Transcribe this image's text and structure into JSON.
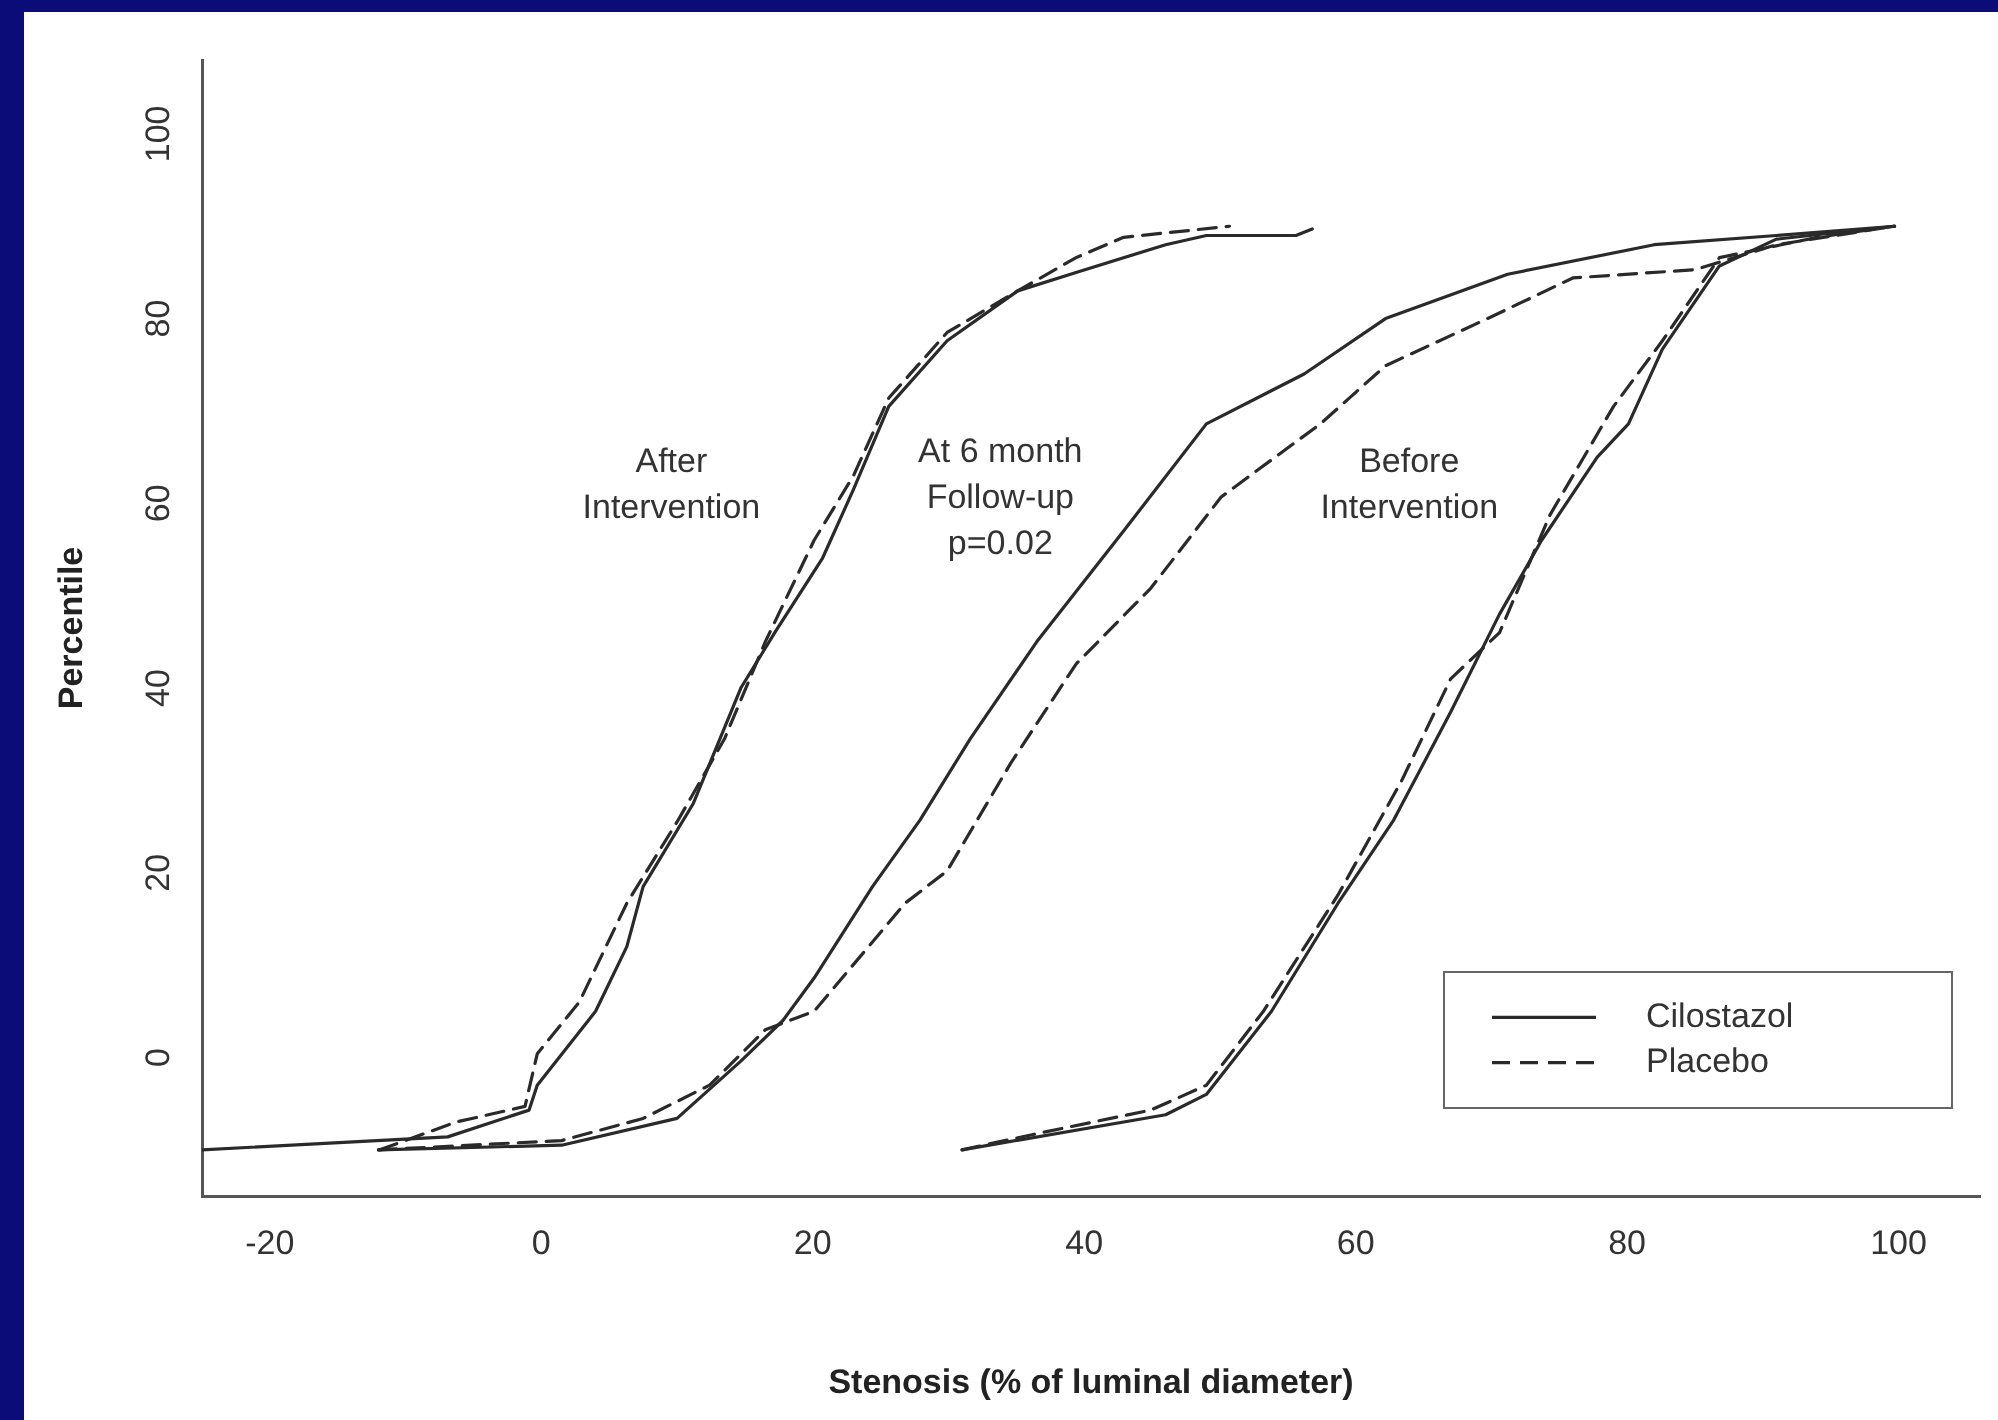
{
  "chart_data": {
    "type": "line",
    "xlabel": "Stenosis (% of luminal diameter)",
    "ylabel": "Percentile",
    "xlim": [
      -25,
      106
    ],
    "ylim": [
      -15,
      108
    ],
    "xticks": [
      -20,
      0,
      20,
      40,
      60,
      80,
      100
    ],
    "yticks": [
      0,
      20,
      40,
      60,
      80,
      100
    ],
    "legend": "bottom right",
    "series": [
      {
        "name": "Cilostazol",
        "color": "#2a2a2a",
        "line_style": "solid",
        "x": [
          -25,
          -6.9,
          -0.9,
          -0.3,
          4,
          6.3,
          7.5,
          11.2,
          14.7,
          17.2,
          20.7,
          23,
          25.6,
          29.9,
          35.1,
          39.4,
          46,
          49,
          55.6,
          56.8
        ],
        "values": [
          -10,
          -8.6,
          -5.7,
          -3,
          5,
          12,
          18.5,
          27.5,
          40,
          46,
          54,
          61.5,
          70.5,
          77.6,
          83,
          85,
          88,
          89,
          89,
          89.7
        ]
      },
      {
        "name": "Placebo",
        "color": "#2a2a2a",
        "line_style": "dashed",
        "x": [
          -11.9,
          -6.3,
          -1.2,
          -0.3,
          2.8,
          6.3,
          10,
          13.5,
          16.5,
          20.1,
          23,
          25.6,
          29.9,
          35.1,
          39.4,
          42.9,
          50.7
        ],
        "values": [
          -10,
          -7,
          -5.3,
          0.4,
          6,
          16.7,
          25.5,
          34.5,
          45,
          56,
          63,
          71.4,
          78.5,
          83,
          86.6,
          88.8,
          90
        ]
      },
      {
        "color": "#2a2a2a",
        "line_style": "solid",
        "x": [
          -12,
          1.5,
          10,
          14.7,
          17.8,
          20.1,
          24.4,
          27.9,
          31.6,
          36.5,
          42.9,
          49,
          56.2,
          62.2,
          71.2,
          82,
          91,
          99.7
        ],
        "values": [
          -10,
          -9.5,
          -6.6,
          -0.4,
          4,
          8.6,
          18.5,
          25.7,
          34.5,
          45,
          57,
          68.6,
          74,
          80,
          84.8,
          88,
          89,
          90
        ]
      },
      {
        "color": "#2a2a2a",
        "line_style": "dashed",
        "x": [
          -12,
          1.5,
          7.5,
          12.4,
          16.5,
          20.1,
          26.8,
          29.9,
          34.6,
          39.4,
          44.9,
          50.1,
          57.4,
          62.2,
          70,
          76,
          85,
          91,
          99.7
        ],
        "values": [
          -10,
          -9,
          -6.6,
          -3,
          3,
          5,
          16.7,
          20.2,
          31.9,
          42.6,
          50.8,
          60.7,
          68.6,
          74.9,
          80.2,
          84.4,
          85.3,
          88,
          90
        ]
      },
      {
        "color": "#2a2a2a",
        "line_style": "solid",
        "x": [
          31,
          46,
          49,
          53.8,
          58.7,
          62.8,
          67,
          70.6,
          73.7,
          77.8,
          80.1,
          82.6,
          86.8,
          91,
          99.7
        ],
        "values": [
          -10,
          -6.2,
          -4,
          5,
          16.7,
          25.7,
          37.4,
          48,
          56,
          65,
          68.6,
          76.7,
          85.7,
          88.6,
          90
        ]
      },
      {
        "color": "#2a2a2a",
        "line_style": "dashed",
        "x": [
          31,
          37,
          44.9,
          49,
          53.2,
          58.7,
          63.4,
          67,
          70.6,
          74.3,
          79,
          82.6,
          86.8,
          94,
          99.7
        ],
        "values": [
          -10,
          -8.1,
          -5.7,
          -3,
          5,
          17.6,
          30,
          41,
          46,
          58.7,
          70.5,
          77.6,
          86.6,
          88.8,
          90
        ]
      }
    ],
    "annotations": [
      "After\nIntervention",
      "At 6 month\nFollow-up\np=0.02",
      "Before\nIntervention"
    ]
  }
}
